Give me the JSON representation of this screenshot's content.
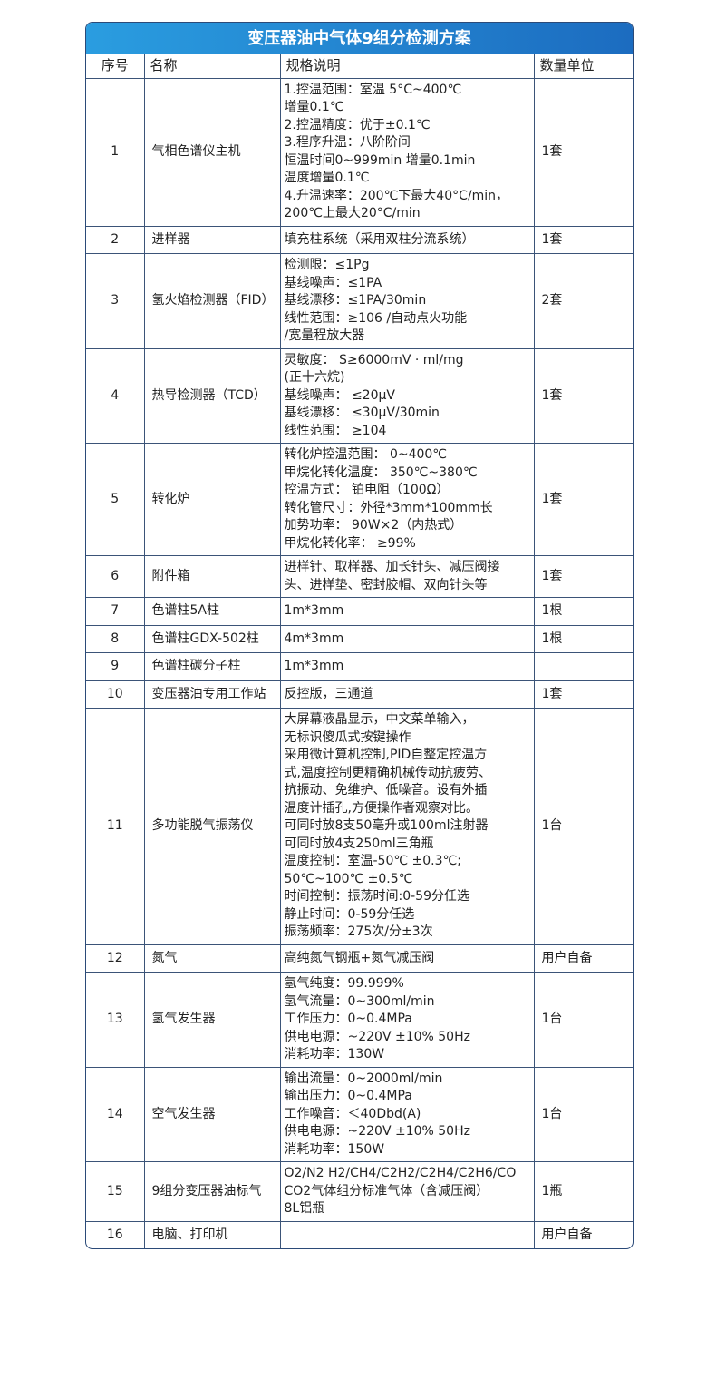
{
  "title": "变压器油中气体9组分检测方案",
  "colors": {
    "header_start": "#2a9de0",
    "header_end": "#1c6cc0",
    "border": "#3b5478"
  },
  "headers": [
    "序号",
    "名称",
    "规格说明",
    "数量单位"
  ],
  "rows": [
    {
      "no": "1",
      "name": "气相色谱仪主机",
      "spec": "1.控温范围：室温 5°C~400℃\n增量0.1℃\n2.控温精度：优于±0.1℃\n3.程序升温：八阶阶间\n恒温时间0~999min 增量0.1min\n温度增量0.1℃\n4.升温速率：200℃下最大40°C/min，\n200℃上最大20°C/min",
      "qty": "1套"
    },
    {
      "no": "2",
      "name": "进样器",
      "spec": "填充柱系统（采用双柱分流系统）",
      "qty": "1套"
    },
    {
      "no": "3",
      "name": "氢火焰检测器（FID）",
      "spec": "检测限：≤1Pg\n基线噪声：≤1PA\n基线漂移：≤1PA/30min\n线性范围：≥106 /自动点火功能\n/宽量程放大器",
      "qty": "2套"
    },
    {
      "no": "4",
      "name": "热导检测器（TCD）",
      "spec": "灵敏度： S≥6000mV · ml/mg\n(正十六烷)\n基线噪声： ≤20μV\n基线漂移： ≤30μV/30min\n线性范围： ≥104",
      "qty": "1套"
    },
    {
      "no": "5",
      "name": "转化炉",
      "spec": "转化炉控温范围： 0~400℃\n甲烷化转化温度： 350℃~380℃\n控温方式： 铂电阻（100Ω）\n转化管尺寸：外径*3mm*100mm长\n加势功率： 90W×2（内热式）\n甲烷化转化率： ≥99%",
      "qty": "1套"
    },
    {
      "no": "6",
      "name": "附件箱",
      "spec": "进样针、取样器、加长针头、减压阀接\n头、进样垫、密封胶帽、双向针头等",
      "qty": "1套"
    },
    {
      "no": "7",
      "name": "色谱柱5A柱",
      "spec": "1m*3mm",
      "qty": "1根"
    },
    {
      "no": "8",
      "name": "色谱柱GDX-502柱",
      "spec": "4m*3mm",
      "qty": "1根"
    },
    {
      "no": "9",
      "name": "色谱柱碳分子柱",
      "spec": "1m*3mm",
      "qty": ""
    },
    {
      "no": "10",
      "name": "变压器油专用工作站",
      "spec": "反控版，三通道",
      "qty": "1套"
    },
    {
      "no": "11",
      "name": "多功能脱气振荡仪",
      "spec": "大屏幕液晶显示，中文菜单输入，\n无标识傻瓜式按键操作\n采用微计算机控制,PID自整定控温方\n式,温度控制更精确机械传动抗疲劳、\n抗振动、免维护、低噪音。设有外插\n温度计插孔,方便操作者观察对比。\n可同时放8支50毫升或100ml注射器\n可同时放4支250ml三角瓶\n温度控制：室温-50℃ ±0.3℃;\n 50℃~100℃ ±0.5℃\n时间控制：振荡时间:0-59分任选\n静止时间：0-59分任选\n振荡频率：275次/分±3次",
      "qty": "1台"
    },
    {
      "no": "12",
      "name": "氮气",
      "spec": "高纯氮气钢瓶+氮气减压阀",
      "qty": "用户自备"
    },
    {
      "no": "13",
      "name": "氢气发生器",
      "spec": "氢气纯度：99.999%\n氢气流量：0~300ml/min\n工作压力：0~0.4MPa\n供电电源：~220V ±10% 50Hz\n消耗功率：130W",
      "qty": "1台"
    },
    {
      "no": "14",
      "name": "空气发生器",
      "spec": "输出流量：0~2000ml/min\n输出压力：0~0.4MPa\n工作噪音：＜40Dbd(A)\n供电电源：~220V ±10% 50Hz\n消耗功率：150W",
      "qty": "1台"
    },
    {
      "no": "15",
      "name": "9组分变压器油标气",
      "spec": "O2/N2 H2/CH4/C2H2/C2H4/C2H6/CO\nCO2气体组分标准气体（含减压阀）\n8L铝瓶",
      "qty": "1瓶"
    },
    {
      "no": "16",
      "name": "电脑、打印机",
      "spec": "",
      "qty": "用户自备"
    }
  ]
}
